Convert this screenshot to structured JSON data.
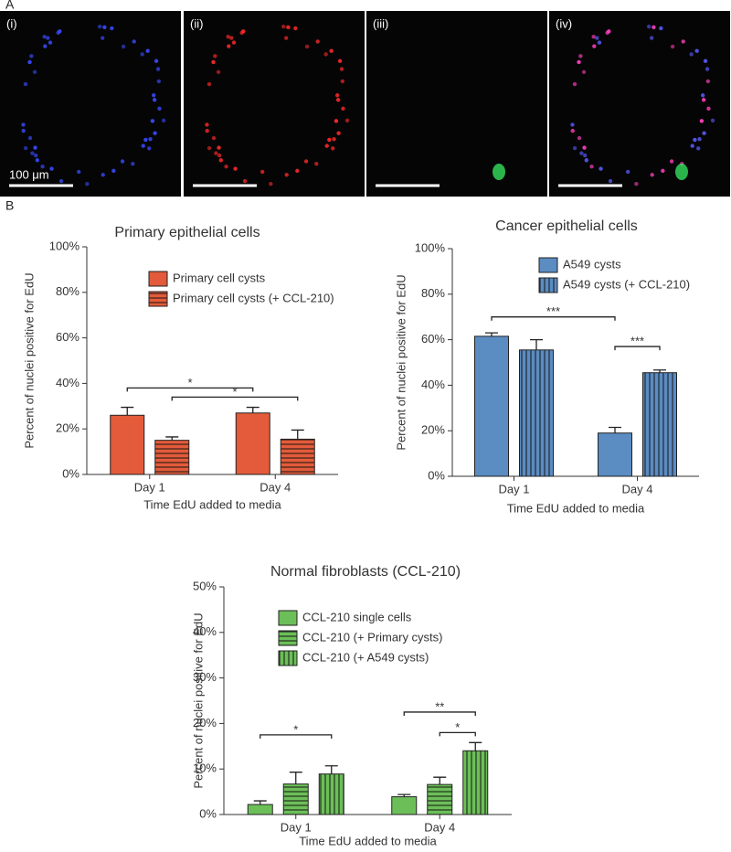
{
  "panels": {
    "label": "A",
    "images": [
      "(i)",
      "(ii)",
      "(iii)",
      "(iv)"
    ],
    "scale_bar": "100 μm"
  },
  "panel_b_label": "B",
  "chart_data": [
    {
      "type": "bar",
      "title": "Primary epithelial cells",
      "x_label": "Time EdU added to media",
      "y_label": "Percent of nuclei positive for EdU",
      "categories": [
        "Day 1",
        "Day 4"
      ],
      "series": [
        {
          "name": "Primary cell cysts",
          "color": "#e35b3a",
          "pattern": "solid",
          "values": [
            26,
            27
          ],
          "errors": [
            3.5,
            2.5
          ]
        },
        {
          "name": "Primary cell cysts (+ CCL-210)",
          "color": "#e35b3a",
          "pattern": "horizontal",
          "values": [
            15,
            15.5
          ],
          "errors": [
            1.5,
            4
          ]
        }
      ],
      "ylim": [
        0,
        100
      ],
      "yticks": [
        {
          "value": 0,
          "label": "0%"
        },
        {
          "value": 20,
          "label": "20%"
        },
        {
          "value": 40,
          "label": "40%"
        },
        {
          "value": 60,
          "label": "60%"
        },
        {
          "value": 80,
          "label": "80%"
        },
        {
          "value": 100,
          "label": "100%"
        }
      ],
      "legend": "upper left",
      "annotations": [
        {
          "text": "*",
          "y": 38,
          "from": [
            "Day 1",
            "Primary cell cysts"
          ],
          "to": [
            "Day 4",
            "Primary cell cysts"
          ]
        },
        {
          "text": "*",
          "y": 34,
          "from": [
            "Day 1",
            "Primary cell cysts (+ CCL-210)"
          ],
          "to": [
            "Day 4",
            "Primary cell cysts (+ CCL-210)"
          ]
        }
      ]
    },
    {
      "type": "bar",
      "title": "Cancer epithelial cells",
      "x_label": "Time EdU added to media",
      "y_label": "Percent of nuclei positive for EdU",
      "categories": [
        "Day 1",
        "Day 4"
      ],
      "series": [
        {
          "name": "A549 cysts",
          "color": "#5b8cc2",
          "pattern": "solid",
          "values": [
            61.5,
            19
          ],
          "errors": [
            1.5,
            2.5
          ]
        },
        {
          "name": "A549 cysts (+ CCL-210)",
          "color": "#5b8cc2",
          "pattern": "vertical",
          "values": [
            55.5,
            45.5
          ],
          "errors": [
            4.5,
            1.2
          ]
        }
      ],
      "ylim": [
        0,
        100
      ],
      "yticks": [
        {
          "value": 0,
          "label": "0%"
        },
        {
          "value": 20,
          "label": "20%"
        },
        {
          "value": 40,
          "label": "40%"
        },
        {
          "value": 60,
          "label": "60%"
        },
        {
          "value": 80,
          "label": "80%"
        },
        {
          "value": 100,
          "label": "100%"
        }
      ],
      "legend": "upper right",
      "annotations": [
        {
          "text": "***",
          "y": 70,
          "from": [
            "Day 1",
            "A549 cysts"
          ],
          "to": [
            "Day 4",
            "A549 cysts"
          ]
        },
        {
          "text": "***",
          "y": 57,
          "from": [
            "Day 4",
            "A549 cysts"
          ],
          "to": [
            "Day 4",
            "A549 cysts (+ CCL-210)"
          ]
        }
      ]
    },
    {
      "type": "bar",
      "title": "Normal fibroblasts (CCL-210)",
      "x_label": "Time EdU added to media",
      "y_label": "Percent of nuclei positive for EdU",
      "categories": [
        "Day 1",
        "Day 4"
      ],
      "series": [
        {
          "name": "CCL-210 single cells",
          "color": "#6cbf58",
          "pattern": "solid",
          "values": [
            2.2,
            3.9
          ],
          "errors": [
            0.8,
            0.5
          ]
        },
        {
          "name": "CCL-210 (+ Primary cysts)",
          "color": "#6cbf58",
          "pattern": "horizontal",
          "values": [
            6.7,
            6.6
          ],
          "errors": [
            2.6,
            1.6
          ]
        },
        {
          "name": "CCL-210 (+ A549 cysts)",
          "color": "#6cbf58",
          "pattern": "vertical",
          "values": [
            8.9,
            14
          ],
          "errors": [
            1.8,
            1.8
          ]
        }
      ],
      "ylim": [
        0,
        50
      ],
      "yticks": [
        {
          "value": 0,
          "label": "0%"
        },
        {
          "value": 10,
          "label": "10%"
        },
        {
          "value": 20,
          "label": "20%"
        },
        {
          "value": 30,
          "label": "30%"
        },
        {
          "value": 40,
          "label": "40%"
        },
        {
          "value": 50,
          "label": "50%"
        }
      ],
      "legend": "upper left",
      "annotations": [
        {
          "text": "*",
          "y": 17.5,
          "from": [
            "Day 1",
            "CCL-210 single cells"
          ],
          "to": [
            "Day 1",
            "CCL-210 (+ A549 cysts)"
          ]
        },
        {
          "text": "**",
          "y": 22.5,
          "from": [
            "Day 4",
            "CCL-210 single cells"
          ],
          "to": [
            "Day 4",
            "CCL-210 (+ A549 cysts)"
          ]
        },
        {
          "text": "*",
          "y": 18,
          "from": [
            "Day 4",
            "CCL-210 (+ Primary cysts)"
          ],
          "to": [
            "Day 4",
            "CCL-210 (+ A549 cysts)"
          ]
        }
      ]
    }
  ]
}
